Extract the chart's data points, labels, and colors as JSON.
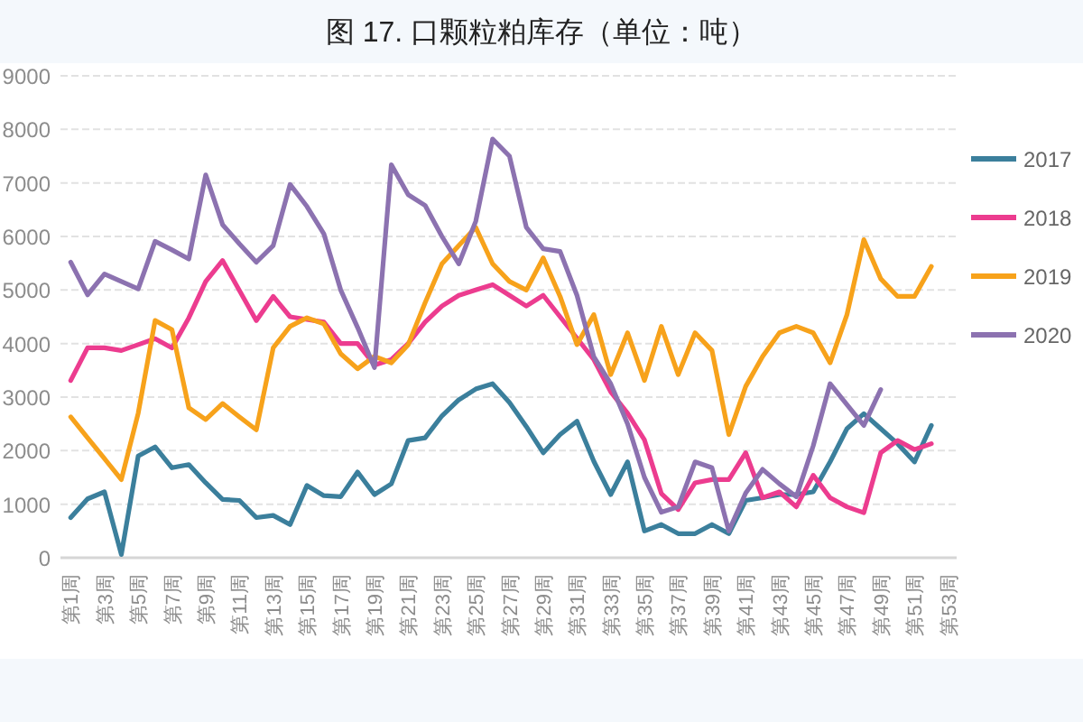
{
  "chart_data": {
    "type": "line",
    "title": "图 17. 口颗粒粕库存（单位：吨）",
    "categories": [
      "第1周",
      null,
      "第3周",
      null,
      "第5周",
      null,
      "第7周",
      null,
      "第9周",
      null,
      "第11周",
      null,
      "第13周",
      null,
      "第15周",
      null,
      "第17周",
      null,
      "第19周",
      null,
      "第21周",
      null,
      "第23周",
      null,
      "第25周",
      null,
      "第27周",
      null,
      "第29周",
      null,
      "第31周",
      null,
      "第33周",
      null,
      "第35周",
      null,
      "第37周",
      null,
      "第39周",
      null,
      "第41周",
      null,
      "第43周",
      null,
      "第45周",
      null,
      "第47周",
      null,
      "第49周",
      null,
      "第51周",
      null,
      "第53周"
    ],
    "ylim": [
      0,
      9000
    ],
    "yticks": [
      0,
      1000,
      2000,
      3000,
      4000,
      5000,
      6000,
      7000,
      8000,
      9000
    ],
    "grid": "y",
    "legend": "right",
    "series": [
      {
        "name": "2017",
        "color": "#3b7f9c",
        "values": [
          750,
          1100,
          1230,
          60,
          1900,
          2070,
          1680,
          1740,
          1400,
          1090,
          1070,
          750,
          790,
          620,
          1350,
          1160,
          1140,
          1600,
          1180,
          1380,
          2190,
          2240,
          2650,
          2950,
          3150,
          3250,
          2900,
          2450,
          1960,
          2300,
          2550,
          1800,
          1180,
          1790,
          500,
          620,
          450,
          450,
          620,
          450,
          1070,
          1120,
          1180,
          1180,
          1230,
          1790,
          2410,
          2690,
          2410,
          2130,
          1790,
          2470,
          null
        ]
      },
      {
        "name": "2018",
        "color": "#ec3c8f",
        "values": [
          3310,
          3920,
          3920,
          3870,
          3980,
          4090,
          3920,
          4480,
          5160,
          5550,
          4990,
          4430,
          4880,
          4500,
          4450,
          4400,
          4000,
          4000,
          3600,
          3700,
          4000,
          4400,
          4700,
          4900,
          5000,
          5100,
          4900,
          4700,
          4900,
          4500,
          4100,
          3700,
          3100,
          2700,
          2200,
          1200,
          900,
          1400,
          1460,
          1460,
          1960,
          1120,
          1230,
          950,
          1540,
          1120,
          950,
          840,
          1960,
          2190,
          2020,
          2130,
          null
        ]
      },
      {
        "name": "2019",
        "color": "#f7a21b",
        "values": [
          2630,
          2240,
          1850,
          1460,
          2700,
          4430,
          4260,
          2800,
          2580,
          2880,
          2630,
          2390,
          3920,
          4320,
          4480,
          4370,
          3810,
          3530,
          3760,
          3640,
          3980,
          4760,
          5490,
          5830,
          6170,
          5490,
          5160,
          5000,
          5600,
          4880,
          3980,
          4540,
          3420,
          4200,
          3310,
          4320,
          3420,
          4200,
          3870,
          2300,
          3200,
          3760,
          4200,
          4320,
          4200,
          3640,
          4540,
          5940,
          5210,
          4880,
          4880,
          5440,
          null
        ]
      },
      {
        "name": "2020",
        "color": "#8c72b0",
        "values": [
          5520,
          4910,
          5300,
          5160,
          5020,
          5910,
          5750,
          5580,
          7150,
          6220,
          5860,
          5520,
          5830,
          6970,
          6560,
          6050,
          5000,
          4300,
          3550,
          7340,
          6780,
          6580,
          6000,
          5490,
          6280,
          7820,
          7500,
          6170,
          5770,
          5720,
          4900,
          3750,
          3250,
          2500,
          1500,
          850,
          950,
          1790,
          1680,
          500,
          1210,
          1650,
          1380,
          1140,
          2090,
          3250,
          2860,
          2470,
          3140,
          null,
          null,
          null,
          null
        ]
      }
    ]
  }
}
